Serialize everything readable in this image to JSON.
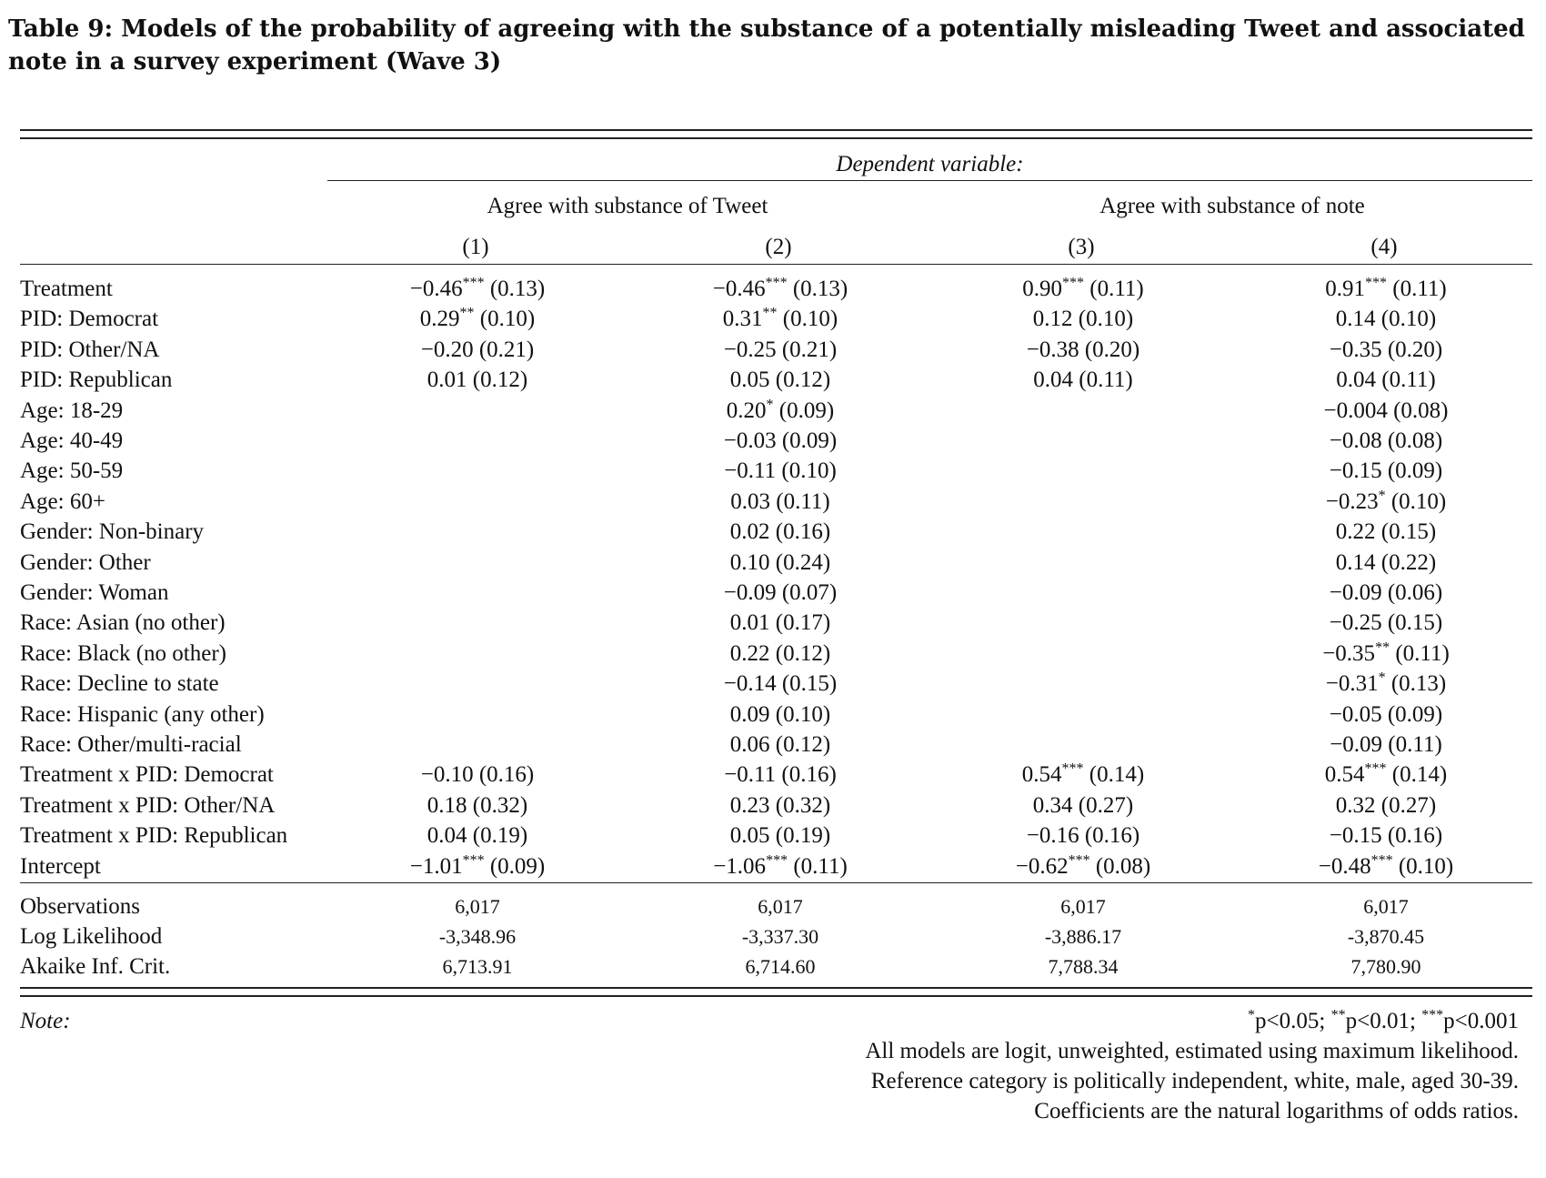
{
  "caption": "Table 9: Models of the probability of agreeing with the substance of a potentially misleading Tweet and associated note in a survey experiment (Wave 3)",
  "header": {
    "dependent_variable": "Dependent variable:",
    "groups": [
      "Agree with substance of Tweet",
      "Agree with substance of note"
    ],
    "columns": [
      "(1)",
      "(2)",
      "(3)",
      "(4)"
    ]
  },
  "rows": [
    {
      "label": "Treatment",
      "cells": [
        "−0.46*** (0.13)",
        "−0.46*** (0.13)",
        "0.90*** (0.11)",
        "0.91*** (0.11)"
      ]
    },
    {
      "label": "PID: Democrat",
      "cells": [
        "0.29** (0.10)",
        "0.31** (0.10)",
        "0.12 (0.10)",
        "0.14 (0.10)"
      ]
    },
    {
      "label": "PID: Other/NA",
      "cells": [
        "−0.20 (0.21)",
        "−0.25 (0.21)",
        "−0.38 (0.20)",
        "−0.35 (0.20)"
      ]
    },
    {
      "label": "PID: Republican",
      "cells": [
        "0.01 (0.12)",
        "0.05 (0.12)",
        "0.04 (0.11)",
        "0.04 (0.11)"
      ]
    },
    {
      "label": "Age: 18-29",
      "cells": [
        "",
        "0.20* (0.09)",
        "",
        "−0.004 (0.08)"
      ]
    },
    {
      "label": "Age: 40-49",
      "cells": [
        "",
        "−0.03 (0.09)",
        "",
        "−0.08 (0.08)"
      ]
    },
    {
      "label": "Age: 50-59",
      "cells": [
        "",
        "−0.11 (0.10)",
        "",
        "−0.15 (0.09)"
      ]
    },
    {
      "label": "Age: 60+",
      "cells": [
        "",
        "0.03 (0.11)",
        "",
        "−0.23* (0.10)"
      ]
    },
    {
      "label": "Gender: Non-binary",
      "cells": [
        "",
        "0.02 (0.16)",
        "",
        "0.22 (0.15)"
      ]
    },
    {
      "label": "Gender: Other",
      "cells": [
        "",
        "0.10 (0.24)",
        "",
        "0.14 (0.22)"
      ]
    },
    {
      "label": "Gender: Woman",
      "cells": [
        "",
        "−0.09 (0.07)",
        "",
        "−0.09 (0.06)"
      ]
    },
    {
      "label": "Race: Asian (no other)",
      "cells": [
        "",
        "0.01 (0.17)",
        "",
        "−0.25 (0.15)"
      ]
    },
    {
      "label": "Race: Black (no other)",
      "cells": [
        "",
        "0.22 (0.12)",
        "",
        "−0.35** (0.11)"
      ]
    },
    {
      "label": "Race: Decline to state",
      "cells": [
        "",
        "−0.14 (0.15)",
        "",
        "−0.31* (0.13)"
      ]
    },
    {
      "label": "Race: Hispanic (any other)",
      "cells": [
        "",
        "0.09 (0.10)",
        "",
        "−0.05 (0.09)"
      ]
    },
    {
      "label": "Race: Other/multi-racial",
      "cells": [
        "",
        "0.06 (0.12)",
        "",
        "−0.09 (0.11)"
      ]
    },
    {
      "label": "Treatment x PID: Democrat",
      "cells": [
        "−0.10 (0.16)",
        "−0.11 (0.16)",
        "0.54*** (0.14)",
        "0.54*** (0.14)"
      ]
    },
    {
      "label": "Treatment x PID: Other/NA",
      "cells": [
        "0.18 (0.32)",
        "0.23 (0.32)",
        "0.34 (0.27)",
        "0.32 (0.27)"
      ]
    },
    {
      "label": "Treatment x PID: Republican",
      "cells": [
        "0.04 (0.19)",
        "0.05 (0.19)",
        "−0.16 (0.16)",
        "−0.15 (0.16)"
      ]
    },
    {
      "label": "Intercept",
      "cells": [
        "−1.01*** (0.09)",
        "−1.06*** (0.11)",
        "−0.62*** (0.08)",
        "−0.48*** (0.10)"
      ]
    }
  ],
  "stats": [
    {
      "label": "Observations",
      "cells": [
        "6,017",
        "6,017",
        "6,017",
        "6,017"
      ]
    },
    {
      "label": "Log Likelihood",
      "cells": [
        "-3,348.96",
        "-3,337.30",
        "-3,886.17",
        "-3,870.45"
      ]
    },
    {
      "label": "Akaike Inf. Crit.",
      "cells": [
        "6,713.91",
        "6,714.60",
        "7,788.34",
        "7,780.90"
      ]
    }
  ],
  "note": {
    "label": "Note:",
    "lines": [
      "*p<0.05; **p<0.01; ***p<0.001",
      "All models are logit, unweighted, estimated using maximum likelihood.",
      "Reference category is politically independent, white, male, aged 30-39.",
      "Coefficients are the natural logarithms of odds ratios."
    ]
  }
}
